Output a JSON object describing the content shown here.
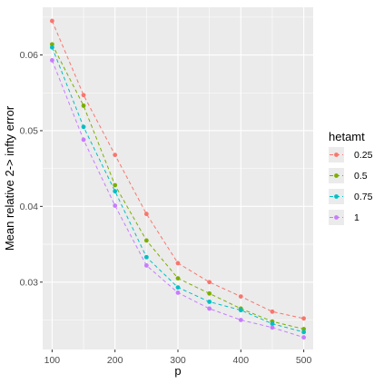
{
  "chart_data": {
    "type": "line",
    "xlabel": "p",
    "ylabel": "Mean relative 2-> infty error",
    "xlim": [
      85,
      515
    ],
    "ylim": [
      0.0211,
      0.0663
    ],
    "x_ticks": [
      100,
      200,
      300,
      400,
      500
    ],
    "x_tick_labels": [
      "100",
      "200",
      "300",
      "400",
      "500"
    ],
    "y_ticks": [
      0.03,
      0.04,
      0.05,
      0.06
    ],
    "y_tick_labels": [
      "0.03",
      "0.04",
      "0.05",
      "0.06"
    ],
    "grid": true,
    "line_style": "dashed",
    "legend": {
      "title": "hetamt",
      "position": "right"
    },
    "x": [
      100,
      150,
      200,
      250,
      300,
      350,
      400,
      450,
      500
    ],
    "series": [
      {
        "name": "0.25",
        "color": "#F8766D",
        "values": [
          0.0645,
          0.0547,
          0.0468,
          0.039,
          0.0325,
          0.03,
          0.0281,
          0.0261,
          0.0252
        ]
      },
      {
        "name": "0.5",
        "color": "#7CAE00",
        "values": [
          0.0614,
          0.0533,
          0.0428,
          0.0355,
          0.0305,
          0.0285,
          0.0265,
          0.0248,
          0.0238
        ]
      },
      {
        "name": "0.75",
        "color": "#00BFC4",
        "values": [
          0.061,
          0.0505,
          0.042,
          0.0333,
          0.0293,
          0.0274,
          0.0263,
          0.0245,
          0.0234
        ]
      },
      {
        "name": "1",
        "color": "#C77CFF",
        "values": [
          0.0593,
          0.0488,
          0.0401,
          0.0322,
          0.0286,
          0.0265,
          0.025,
          0.024,
          0.0227
        ]
      }
    ]
  }
}
